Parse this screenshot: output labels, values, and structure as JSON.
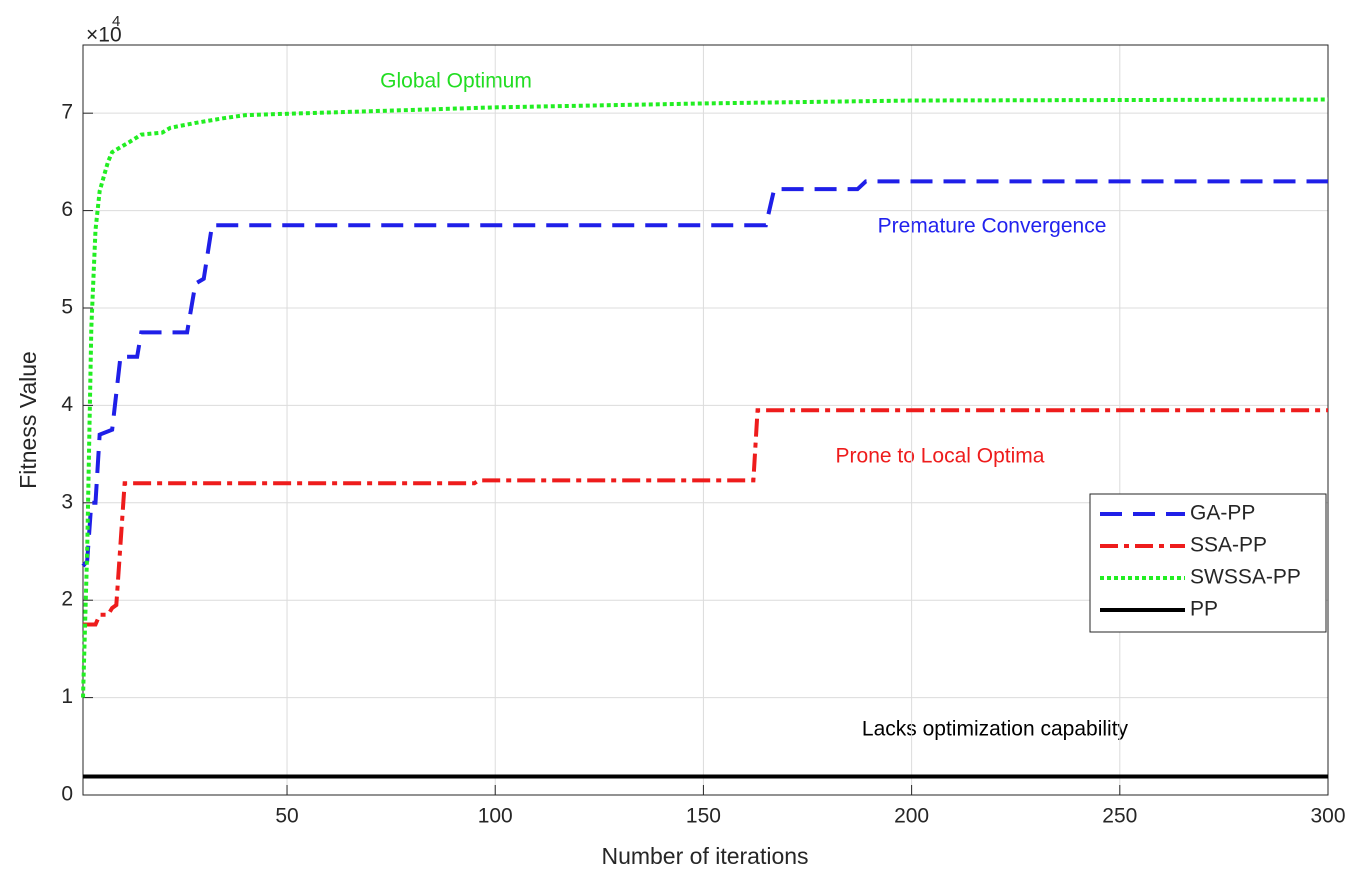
{
  "chart_data": {
    "type": "line",
    "xlabel": "Number of iterations",
    "ylabel": "Fitness Value",
    "y_multiplier": {
      "base": "×10",
      "power": "4"
    },
    "xlim": [
      1,
      300
    ],
    "xticks": [
      50,
      100,
      150,
      200,
      250,
      300
    ],
    "ylim": [
      0,
      7.7
    ],
    "yticks": [
      0,
      1,
      2,
      3,
      4,
      5,
      6,
      7
    ],
    "grid": true,
    "legend": "lower right",
    "annotations": [
      {
        "text": "Global Optimum",
        "color": "#22dd22"
      },
      {
        "text": "Premature Convergence",
        "color": "#2222ee"
      },
      {
        "text": "Prone to Local Optima",
        "color": "#ee1c1c"
      },
      {
        "text": "Lacks optimization capability",
        "color": "#000000"
      }
    ],
    "series": [
      {
        "name": "GA-PP",
        "color": "#1f1fe8",
        "line_style": "dashed",
        "x": [
          1,
          2,
          3,
          4,
          5,
          8,
          10,
          14,
          15,
          26,
          28,
          30,
          32,
          165,
          167,
          187,
          189,
          300
        ],
        "values": [
          2.35,
          2.4,
          3.0,
          3.0,
          3.7,
          3.75,
          4.5,
          4.5,
          4.75,
          4.75,
          5.25,
          5.3,
          5.85,
          5.85,
          6.22,
          6.22,
          6.3,
          6.3
        ]
      },
      {
        "name": "SSA-PP",
        "color": "#ee1c1c",
        "line_style": "dashdot",
        "x": [
          1,
          4,
          5,
          7,
          8,
          9,
          11,
          95,
          96,
          162,
          163,
          300
        ],
        "values": [
          1.75,
          1.75,
          1.85,
          1.85,
          1.92,
          1.95,
          3.2,
          3.2,
          3.23,
          3.23,
          3.95,
          3.95
        ]
      },
      {
        "name": "SWSSA-PP",
        "color": "#22ee22",
        "line_style": "dotted",
        "x": [
          1,
          2,
          3,
          4,
          5,
          7,
          8,
          12,
          15,
          20,
          22,
          28,
          35,
          40,
          47,
          70,
          100,
          150,
          200,
          300
        ],
        "values": [
          1.0,
          2.5,
          4.8,
          5.8,
          6.2,
          6.5,
          6.6,
          6.7,
          6.78,
          6.8,
          6.85,
          6.9,
          6.95,
          6.98,
          6.99,
          7.02,
          7.06,
          7.1,
          7.13,
          7.14
        ]
      },
      {
        "name": "PP",
        "color": "#000000",
        "line_style": "solid",
        "x": [
          1,
          300
        ],
        "values": [
          0.19,
          0.19
        ]
      }
    ]
  }
}
